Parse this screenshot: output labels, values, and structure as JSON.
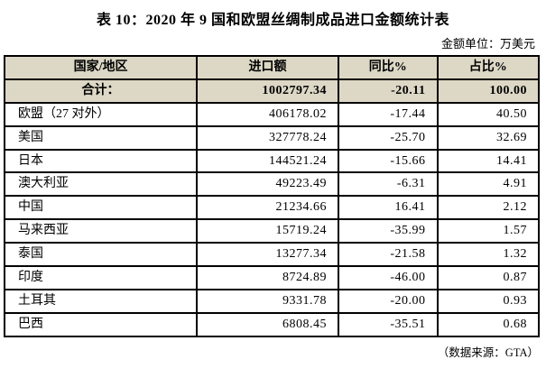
{
  "title": "表 10：2020 年 9 国和欧盟丝绸制成品进口金额统计表",
  "unit_note": "金额单位：万美元",
  "source_note": "（数据来源：GTA）",
  "colors": {
    "header_bg": "#ddd8c6",
    "border": "#000000",
    "text": "#000000",
    "page_bg": "#ffffff"
  },
  "table": {
    "columns": [
      "国家/地区",
      "进口额",
      "同比%",
      "占比%"
    ],
    "total_row": {
      "label": "合计：",
      "import_value": "1002797.34",
      "yoy": "-20.11",
      "share": "100.00"
    },
    "rows": [
      {
        "region": "欧盟（27 对外）",
        "import_value": "406178.02",
        "yoy": "-17.44",
        "share": "40.50"
      },
      {
        "region": "美国",
        "import_value": "327778.24",
        "yoy": "-25.70",
        "share": "32.69"
      },
      {
        "region": "日本",
        "import_value": "144521.24",
        "yoy": "-15.66",
        "share": "14.41"
      },
      {
        "region": "澳大利亚",
        "import_value": "49223.49",
        "yoy": "-6.31",
        "share": "4.91"
      },
      {
        "region": "中国",
        "import_value": "21234.66",
        "yoy": "16.41",
        "share": "2.12"
      },
      {
        "region": "马来西亚",
        "import_value": "15719.24",
        "yoy": "-35.99",
        "share": "1.57"
      },
      {
        "region": "泰国",
        "import_value": "13277.34",
        "yoy": "-21.58",
        "share": "1.32"
      },
      {
        "region": "印度",
        "import_value": "8724.89",
        "yoy": "-46.00",
        "share": "0.87"
      },
      {
        "region": "土耳其",
        "import_value": "9331.78",
        "yoy": "-20.00",
        "share": "0.93"
      },
      {
        "region": "巴西",
        "import_value": "6808.45",
        "yoy": "-35.51",
        "share": "0.68"
      }
    ]
  }
}
